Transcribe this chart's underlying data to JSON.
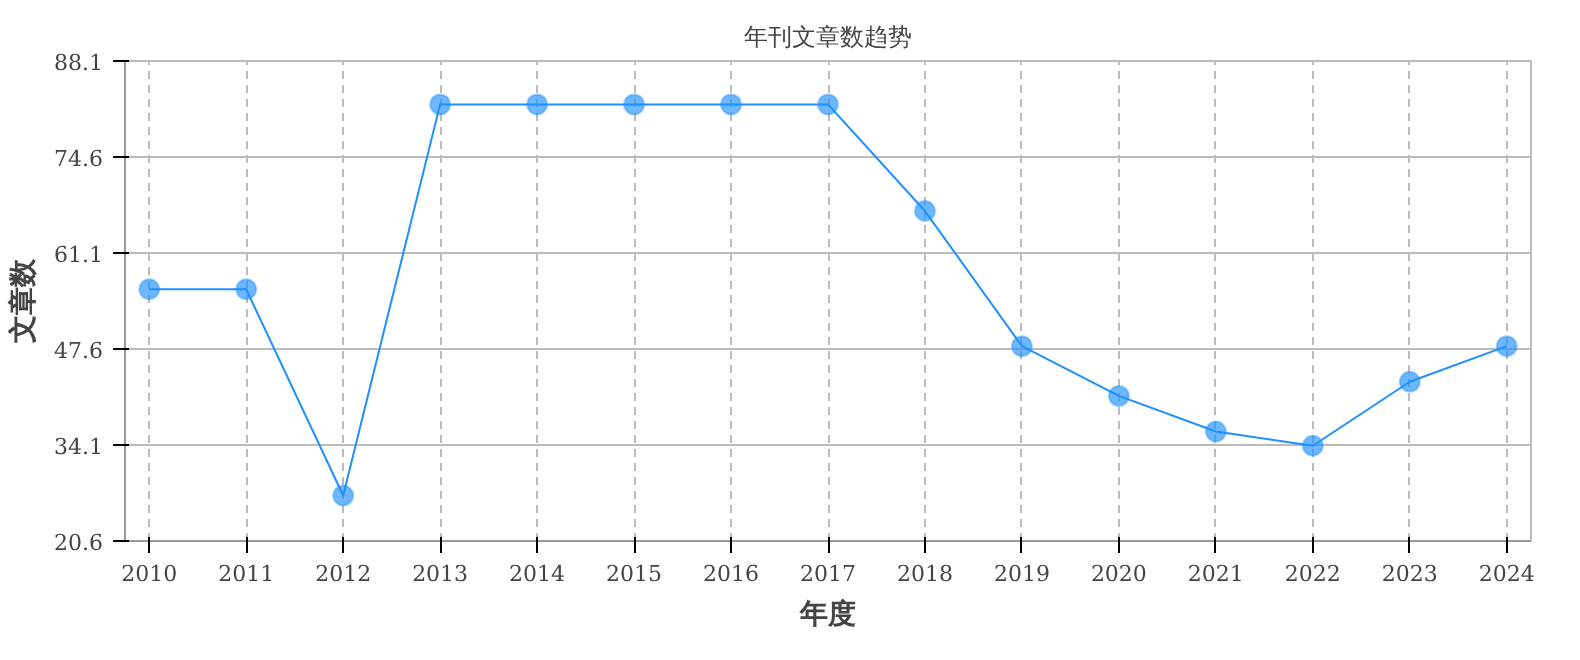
{
  "chart_data": {
    "type": "line",
    "title": "年刊文章数趋势",
    "xlabel": "年度",
    "ylabel": "文章数",
    "categories": [
      "2010",
      "2011",
      "2012",
      "2013",
      "2014",
      "2015",
      "2016",
      "2017",
      "2018",
      "2019",
      "2020",
      "2021",
      "2022",
      "2023",
      "2024"
    ],
    "series": [
      {
        "color": "#1e90ff",
        "values": [
          56,
          56,
          27,
          82,
          82,
          82,
          82,
          82,
          67,
          48,
          41,
          36,
          34,
          43,
          48
        ]
      }
    ],
    "ylim": [
      20.6,
      88.1
    ],
    "yticks": [
      20.6,
      34.1,
      47.6,
      61.1,
      74.6,
      88.1
    ],
    "grid": true,
    "marker": "circle",
    "line_style": "solid"
  }
}
